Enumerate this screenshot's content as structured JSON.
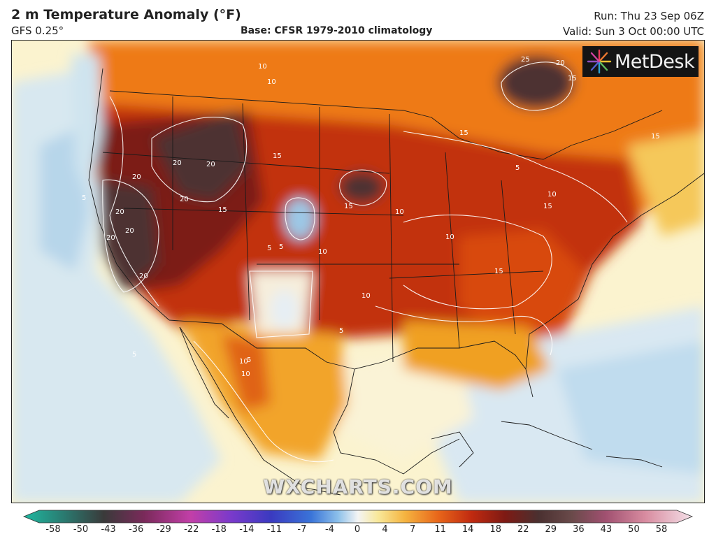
{
  "header": {
    "title": "2 m Temperature Anomaly (°F)",
    "model": "GFS 0.25°",
    "base": "Base: CFSR 1979-2010 climatology",
    "run": "Run: Thu 23 Sep 06Z",
    "valid": "Valid: Sun 3 Oct 00:00 UTC"
  },
  "logo": {
    "text": "MetDesk",
    "icon": "metdesk-burst-icon"
  },
  "watermark": "WXCHARTS.COM",
  "colors": {
    "hot_core": "#4a2e2e",
    "dark_red": "#7a1a10",
    "red": "#b8260e",
    "orange_red": "#d8480c",
    "orange": "#ee7d10",
    "amber": "#f5a623",
    "yellow": "#f8d878",
    "pale": "#fbf2c8",
    "white": "#f8f8f4",
    "pale_blue": "#d4e6f2",
    "blue": "#9cc8e6"
  },
  "colorbar": {
    "ticks": [
      "-58",
      "-50",
      "-43",
      "-36",
      "-29",
      "-22",
      "-18",
      "-14",
      "-11",
      "-7",
      "-4",
      "0",
      "4",
      "7",
      "11",
      "14",
      "18",
      "22",
      "29",
      "36",
      "43",
      "50",
      "58"
    ]
  },
  "labels": [
    {
      "t": "20"
    },
    {
      "t": "20"
    },
    {
      "t": "20"
    },
    {
      "t": "20"
    },
    {
      "t": "20"
    },
    {
      "t": "20"
    },
    {
      "t": "20"
    },
    {
      "t": "20"
    },
    {
      "t": "15"
    },
    {
      "t": "15"
    },
    {
      "t": "15"
    },
    {
      "t": "15"
    },
    {
      "t": "15"
    },
    {
      "t": "15"
    },
    {
      "t": "15"
    },
    {
      "t": "10"
    },
    {
      "t": "10"
    },
    {
      "t": "10"
    },
    {
      "t": "10"
    },
    {
      "t": "10"
    },
    {
      "t": "10"
    },
    {
      "t": "10"
    },
    {
      "t": "10"
    },
    {
      "t": "10"
    },
    {
      "t": "5"
    },
    {
      "t": "5"
    },
    {
      "t": "5"
    },
    {
      "t": "5"
    },
    {
      "t": "5"
    },
    {
      "t": "5"
    },
    {
      "t": "5"
    },
    {
      "t": "25"
    },
    {
      "t": "20"
    },
    {
      "t": "15"
    }
  ]
}
